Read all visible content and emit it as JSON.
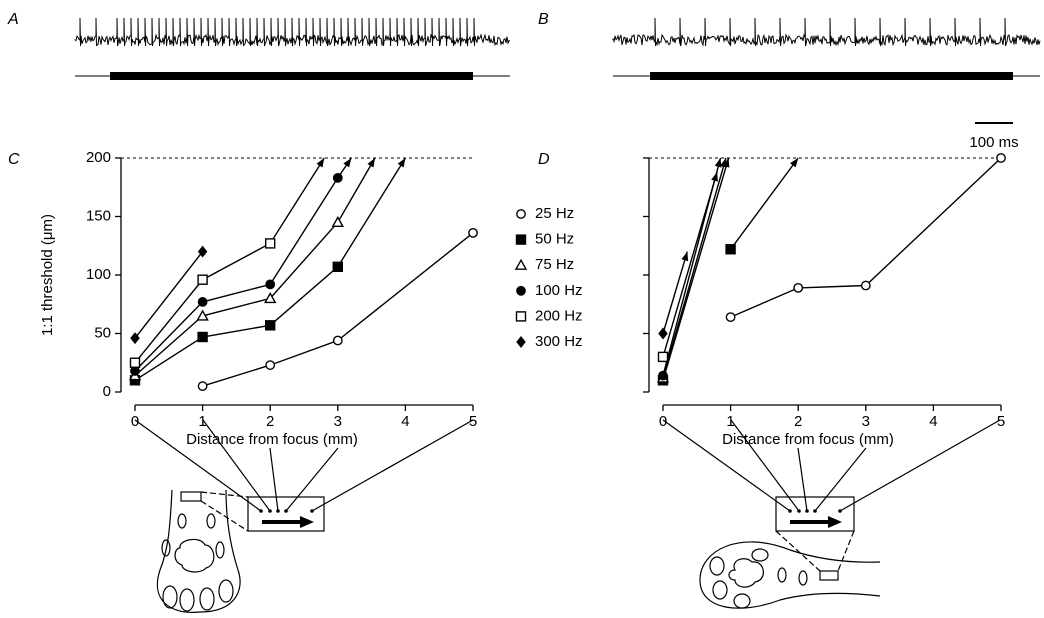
{
  "traces": [
    {
      "label": "A"
    },
    {
      "label": "B",
      "scale_bar": "100 ms"
    }
  ],
  "chart_data": [
    {
      "type": "line",
      "label": "C",
      "ylabel": "1:1 threshold (μm)",
      "xlabel": "Distance from focus (mm)",
      "xlim": [
        0,
        5
      ],
      "xticks": [
        0,
        1,
        2,
        3,
        4,
        5
      ],
      "ylim": [
        0,
        200
      ],
      "yticks": [
        0,
        50,
        100,
        150,
        200
      ],
      "ytick_labels": true,
      "legend": true,
      "color": "#000000",
      "series": [
        {
          "name": "25 Hz",
          "marker": "circle-open",
          "arrow": false,
          "x": [
            1,
            2,
            3,
            5
          ],
          "values": [
            5,
            23,
            44,
            136
          ]
        },
        {
          "name": "50 Hz",
          "marker": "square",
          "arrow": true,
          "x": [
            0,
            1,
            2,
            3,
            4
          ],
          "values": [
            10,
            47,
            57,
            107,
            200
          ]
        },
        {
          "name": "75 Hz",
          "marker": "triangle-open",
          "arrow": true,
          "x": [
            0,
            1,
            2,
            3,
            3.55
          ],
          "values": [
            14,
            65,
            80,
            145,
            200
          ]
        },
        {
          "name": "100 Hz",
          "marker": "circle",
          "arrow": true,
          "x": [
            0,
            1,
            2,
            3,
            3.2
          ],
          "values": [
            18,
            77,
            92,
            183,
            200
          ]
        },
        {
          "name": "200 Hz",
          "marker": "square-open",
          "arrow": true,
          "x": [
            0,
            1,
            2,
            2.8
          ],
          "values": [
            25,
            96,
            127,
            200
          ]
        },
        {
          "name": "300 Hz",
          "marker": "diamond",
          "arrow": false,
          "x": [
            0,
            1
          ],
          "values": [
            46,
            120
          ]
        }
      ]
    },
    {
      "type": "line",
      "label": "D",
      "xlabel": "Distance from focus (mm)",
      "xlim": [
        0,
        5
      ],
      "xticks": [
        0,
        1,
        2,
        3,
        4,
        5
      ],
      "ylim": [
        0,
        200
      ],
      "yticks": [
        0,
        50,
        100,
        150,
        200
      ],
      "ytick_labels": false,
      "legend": false,
      "color": "#000000",
      "series": [
        {
          "marker": "circle-open",
          "arrow": false,
          "x": [
            1,
            2,
            3,
            5
          ],
          "values": [
            64,
            89,
            91,
            200
          ]
        },
        {
          "marker": "square",
          "arrow": true,
          "x": [
            0,
            0.97,
            null,
            1,
            2
          ],
          "values": [
            10,
            200,
            null,
            122,
            200
          ]
        },
        {
          "marker": "triangle-open",
          "arrow": true,
          "x": [
            0,
            0.93
          ],
          "values": [
            12,
            200
          ]
        },
        {
          "marker": "circle",
          "arrow": true,
          "x": [
            0,
            0.85
          ],
          "values": [
            14,
            200
          ]
        },
        {
          "marker": "square-open",
          "arrow": true,
          "x": [
            0,
            0.8
          ],
          "values": [
            30,
            188
          ]
        },
        {
          "marker": "diamond",
          "arrow": true,
          "x": [
            0,
            0.36
          ],
          "values": [
            50,
            120
          ]
        }
      ]
    }
  ]
}
